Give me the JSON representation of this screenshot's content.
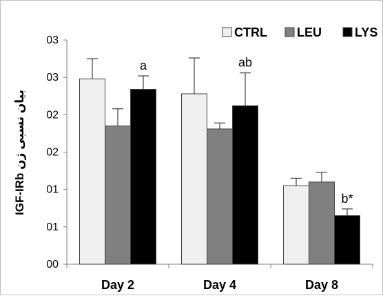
{
  "chart_data": {
    "type": "bar",
    "title": "",
    "xlabel": "",
    "ylabel": "IGF-IRb بیان نسبی ژن",
    "ylim": [
      0,
      3.0
    ],
    "yticks": [
      0,
      0.5,
      1.0,
      1.5,
      2.0,
      2.5,
      3.0
    ],
    "ytick_labels": [
      "00",
      "01",
      "01",
      "02",
      "02",
      "03",
      "03"
    ],
    "categories": [
      "Day 2",
      "Day 4",
      "Day 8"
    ],
    "series": [
      {
        "name": "CTRL",
        "color": "#efefef",
        "values": [
          2.48,
          2.28,
          1.05
        ],
        "errors": [
          0.27,
          0.48,
          0.1
        ]
      },
      {
        "name": "LEU",
        "color": "#808080",
        "values": [
          1.85,
          1.81,
          1.1
        ],
        "errors": [
          0.23,
          0.08,
          0.13
        ]
      },
      {
        "name": "LYS",
        "color": "#000000",
        "values": [
          2.34,
          2.12,
          0.65
        ],
        "errors": [
          0.18,
          0.44,
          0.09
        ]
      }
    ],
    "annotations": [
      {
        "category": "Day 2",
        "series": "LYS",
        "text": "a"
      },
      {
        "category": "Day 4",
        "series": "LYS",
        "text": "ab"
      },
      {
        "category": "Day 8",
        "series": "LYS",
        "text": "b*"
      }
    ],
    "legend": "top-right",
    "grid": false
  }
}
